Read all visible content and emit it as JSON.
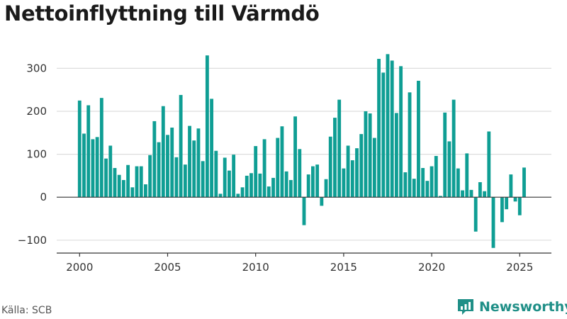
{
  "title": "Nettoinflyttning till Värmdö",
  "source": "Källa: SCB",
  "brand": "Newsworthy",
  "colors": {
    "bar": "#0f9e94",
    "brand": "#1f8f87",
    "grid": "#dddddd",
    "axis": "#333333"
  },
  "chart_data": {
    "type": "bar",
    "title": "Nettoinflyttning till Värmdö",
    "xlabel": "",
    "ylabel": "",
    "ylim": [
      -130,
      360
    ],
    "xlim": [
      1998.7,
      2026.8
    ],
    "grid": true,
    "yticks": [
      300,
      200,
      100,
      0,
      -100
    ],
    "ytick_labels": [
      "300",
      "200",
      "100",
      "0",
      "−100"
    ],
    "xticks": [
      2000,
      2005,
      2010,
      2015,
      2020,
      2025
    ],
    "xtick_labels": [
      "2000",
      "2005",
      "2010",
      "2015",
      "2020",
      "2025"
    ],
    "x_start": 2000,
    "x_step": 0.25,
    "values": [
      225,
      148,
      214,
      135,
      140,
      231,
      90,
      120,
      68,
      52,
      40,
      75,
      23,
      72,
      72,
      30,
      98,
      177,
      128,
      212,
      145,
      162,
      93,
      238,
      76,
      166,
      132,
      160,
      84,
      330,
      229,
      108,
      8,
      92,
      62,
      99,
      8,
      23,
      50,
      56,
      119,
      55,
      135,
      25,
      45,
      138,
      165,
      60,
      40,
      188,
      112,
      -65,
      53,
      72,
      76,
      -20,
      42,
      141,
      185,
      227,
      67,
      120,
      86,
      114,
      147,
      200,
      195,
      138,
      322,
      290,
      333,
      318,
      196,
      305,
      58,
      244,
      43,
      271,
      68,
      38,
      72,
      96,
      3,
      197,
      130,
      227,
      67,
      16,
      102,
      17,
      -80,
      35,
      14,
      153,
      -118,
      0,
      -58,
      -28,
      53,
      -10,
      -42,
      69
    ]
  }
}
